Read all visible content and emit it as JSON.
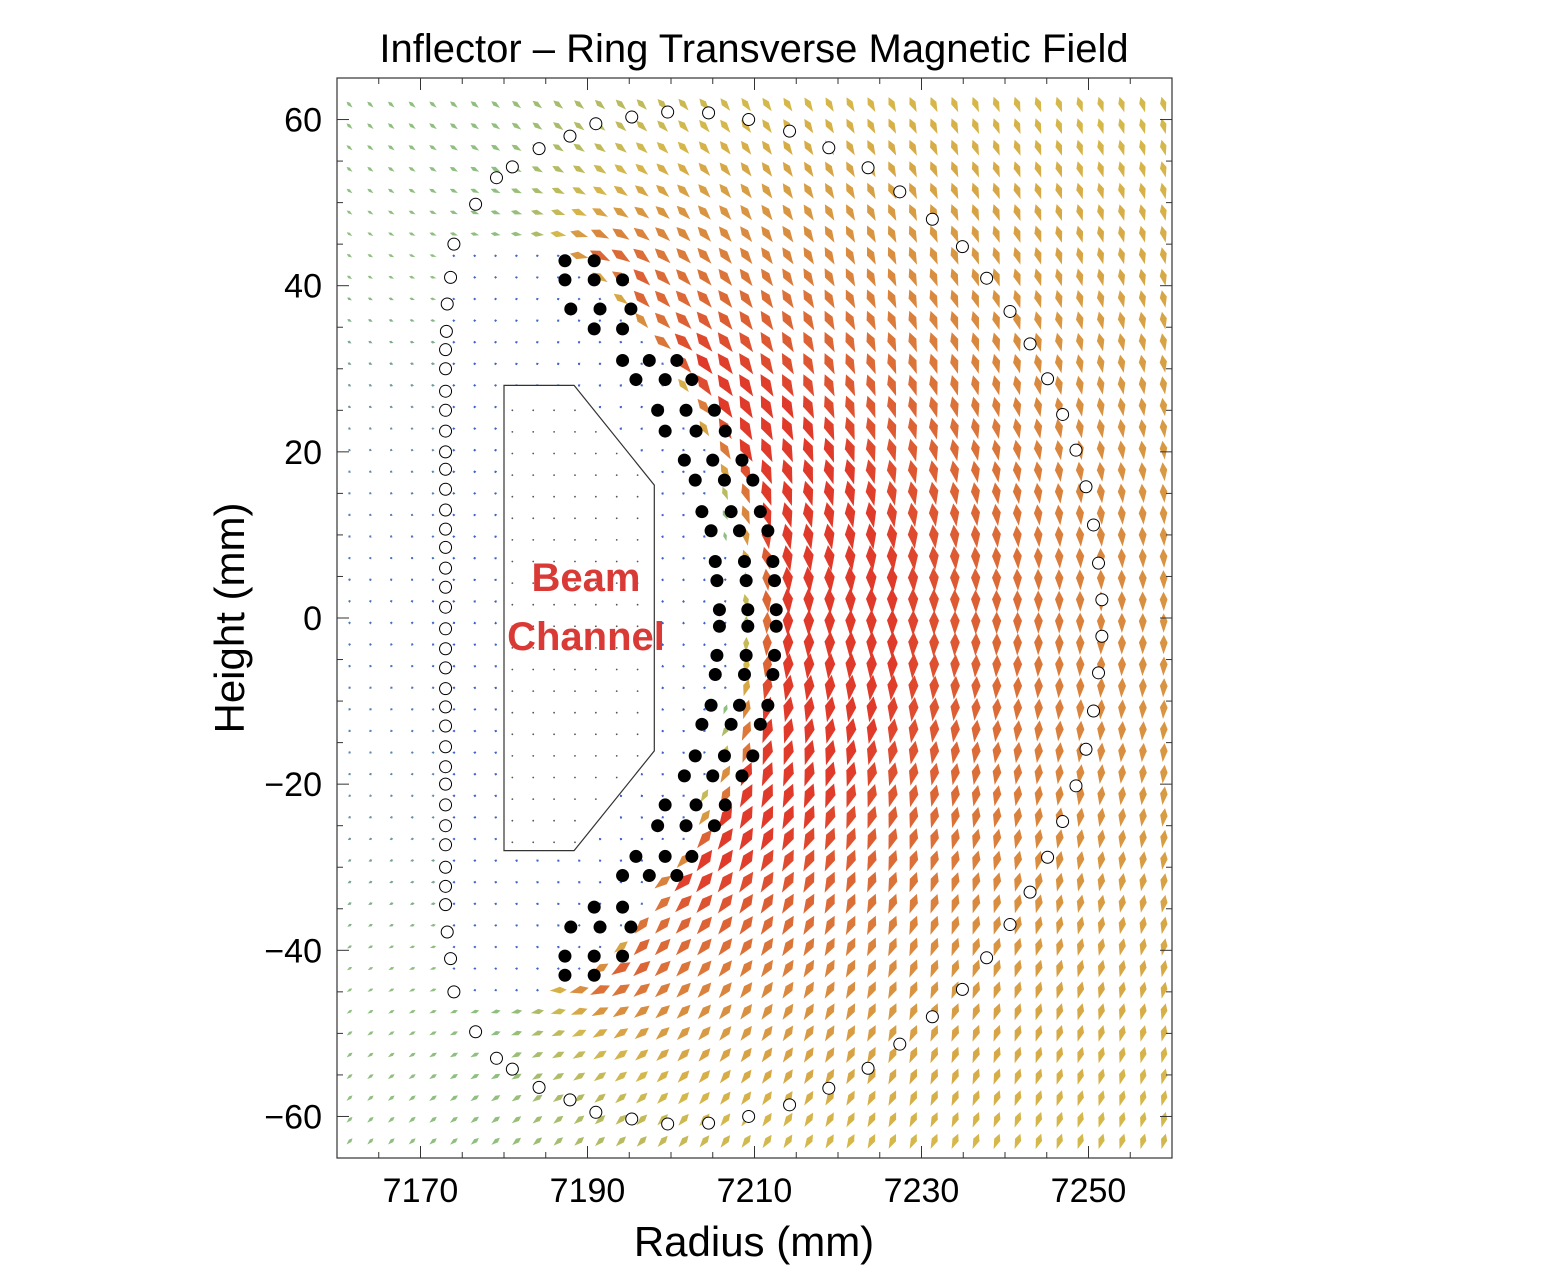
{
  "chart_data": {
    "type": "vector_field",
    "title": "Inflector – Ring Transverse Magnetic Field",
    "xlabel": "Radius (mm)",
    "ylabel": "Height (mm)",
    "xlim": [
      7160,
      7260
    ],
    "ylim": [
      -65,
      65
    ],
    "xticks": [
      "7170",
      "7190",
      "7210",
      "7230",
      "7250"
    ],
    "xtick_values": [
      7170,
      7190,
      7210,
      7230,
      7250
    ],
    "yticks": [
      "60",
      "40",
      "20",
      "0",
      "−20",
      "−40",
      "−60"
    ],
    "ytick_values": [
      60,
      40,
      20,
      0,
      -20,
      -40,
      -60
    ],
    "grid": false,
    "annotation": {
      "lines": [
        "Beam",
        "Channel"
      ],
      "color": "#d93a36"
    },
    "colors": {
      "weak_field": "#3a5fcd",
      "mid_field": "#8fbf7f",
      "strong_mid": "#d6b84a",
      "strong_field": "#e03a2a",
      "coil_filled": "#000000",
      "coil_open": "#000000"
    },
    "beam_channel_outline_mm": [
      [
        7180,
        28
      ],
      [
        7188.4,
        28
      ],
      [
        7198,
        16
      ],
      [
        7198,
        -16
      ],
      [
        7188.4,
        -28
      ],
      [
        7180,
        -28
      ]
    ],
    "inner_coil_conductors_mm": [
      [
        7187.3,
        43
      ],
      [
        7190.8,
        43
      ],
      [
        7187.3,
        40.7
      ],
      [
        7190.8,
        40.7
      ],
      [
        7194.2,
        40.7
      ],
      [
        7188,
        37.2
      ],
      [
        7191.5,
        37.2
      ],
      [
        7195.2,
        37.2
      ],
      [
        7190.8,
        34.8
      ],
      [
        7194.2,
        34.8
      ],
      [
        7194.2,
        31
      ],
      [
        7197.4,
        31
      ],
      [
        7200.7,
        31
      ],
      [
        7195.8,
        28.7
      ],
      [
        7199.3,
        28.7
      ],
      [
        7202.5,
        28.7
      ],
      [
        7198.4,
        25
      ],
      [
        7201.8,
        25
      ],
      [
        7205.2,
        25
      ],
      [
        7199.3,
        22.5
      ],
      [
        7203,
        22.5
      ],
      [
        7206.5,
        22.5
      ],
      [
        7201.6,
        19
      ],
      [
        7205,
        19
      ],
      [
        7208.5,
        19
      ],
      [
        7202.9,
        16.6
      ],
      [
        7206.4,
        16.6
      ],
      [
        7209.8,
        16.6
      ],
      [
        7203.7,
        12.8
      ],
      [
        7207.2,
        12.8
      ],
      [
        7210.7,
        12.8
      ],
      [
        7204.8,
        10.5
      ],
      [
        7208.2,
        10.5
      ],
      [
        7211.6,
        10.5
      ],
      [
        7205.3,
        6.8
      ],
      [
        7208.8,
        6.8
      ],
      [
        7212.2,
        6.8
      ],
      [
        7205.5,
        4.5
      ],
      [
        7209,
        4.5
      ],
      [
        7212.4,
        4.5
      ],
      [
        7205.8,
        1
      ],
      [
        7209.2,
        1
      ],
      [
        7212.6,
        1
      ],
      [
        7205.8,
        -1
      ],
      [
        7209.2,
        -1
      ],
      [
        7212.6,
        -1
      ],
      [
        7205.5,
        -4.5
      ],
      [
        7209,
        -4.5
      ],
      [
        7212.4,
        -4.5
      ],
      [
        7205.3,
        -6.8
      ],
      [
        7208.8,
        -6.8
      ],
      [
        7212.2,
        -6.8
      ],
      [
        7204.8,
        -10.5
      ],
      [
        7208.2,
        -10.5
      ],
      [
        7211.6,
        -10.5
      ],
      [
        7203.7,
        -12.8
      ],
      [
        7207.2,
        -12.8
      ],
      [
        7210.7,
        -12.8
      ],
      [
        7202.9,
        -16.6
      ],
      [
        7206.4,
        -16.6
      ],
      [
        7209.8,
        -16.6
      ],
      [
        7201.6,
        -19
      ],
      [
        7205,
        -19
      ],
      [
        7208.5,
        -19
      ],
      [
        7199.3,
        -22.5
      ],
      [
        7203,
        -22.5
      ],
      [
        7206.5,
        -22.5
      ],
      [
        7198.4,
        -25
      ],
      [
        7201.8,
        -25
      ],
      [
        7205.2,
        -25
      ],
      [
        7195.8,
        -28.7
      ],
      [
        7199.3,
        -28.7
      ],
      [
        7202.5,
        -28.7
      ],
      [
        7194.2,
        -31
      ],
      [
        7197.4,
        -31
      ],
      [
        7200.7,
        -31
      ],
      [
        7190.8,
        -34.8
      ],
      [
        7194.2,
        -34.8
      ],
      [
        7188,
        -37.2
      ],
      [
        7191.5,
        -37.2
      ],
      [
        7195.2,
        -37.2
      ],
      [
        7187.3,
        -40.7
      ],
      [
        7190.8,
        -40.7
      ],
      [
        7194.2,
        -40.7
      ],
      [
        7187.3,
        -43
      ],
      [
        7190.8,
        -43
      ]
    ],
    "outer_coil_conductors_mm": [
      [
        7174,
        45
      ],
      [
        7173.6,
        41
      ],
      [
        7173.2,
        37.8
      ],
      [
        7173.1,
        34.5
      ],
      [
        7173,
        32.3
      ],
      [
        7173,
        30
      ],
      [
        7173,
        27.3
      ],
      [
        7173,
        25
      ],
      [
        7173,
        22.5
      ],
      [
        7173,
        20
      ],
      [
        7173,
        17.9
      ],
      [
        7173,
        15.5
      ],
      [
        7173,
        13
      ],
      [
        7173,
        10.7
      ],
      [
        7173,
        8.5
      ],
      [
        7173,
        6
      ],
      [
        7173,
        3.7
      ],
      [
        7173,
        1.3
      ],
      [
        7173,
        -1.3
      ],
      [
        7173,
        -3.7
      ],
      [
        7173,
        -6
      ],
      [
        7173,
        -8.5
      ],
      [
        7173,
        -10.7
      ],
      [
        7173,
        -13
      ],
      [
        7173,
        -15.5
      ],
      [
        7173,
        -17.9
      ],
      [
        7173,
        -20
      ],
      [
        7173,
        -22.5
      ],
      [
        7173,
        -25
      ],
      [
        7173,
        -27.3
      ],
      [
        7173,
        -30
      ],
      [
        7173,
        -32.3
      ],
      [
        7173,
        -34.5
      ],
      [
        7173.2,
        -37.8
      ],
      [
        7173.6,
        -41
      ],
      [
        7174,
        -45
      ],
      [
        7176.6,
        49.8
      ],
      [
        7179.1,
        53
      ],
      [
        7181,
        54.3
      ],
      [
        7184.2,
        56.5
      ],
      [
        7187.9,
        58
      ],
      [
        7191,
        59.5
      ],
      [
        7195.3,
        60.3
      ],
      [
        7199.6,
        60.9
      ],
      [
        7204.5,
        60.8
      ],
      [
        7209.3,
        60
      ],
      [
        7214.2,
        58.6
      ],
      [
        7218.9,
        56.6
      ],
      [
        7223.6,
        54.2
      ],
      [
        7227.4,
        51.3
      ],
      [
        7231.3,
        48
      ],
      [
        7234.9,
        44.7
      ],
      [
        7237.8,
        40.9
      ],
      [
        7240.6,
        36.9
      ],
      [
        7243,
        33
      ],
      [
        7245.1,
        28.8
      ],
      [
        7246.9,
        24.5
      ],
      [
        7248.5,
        20.2
      ],
      [
        7249.7,
        15.8
      ],
      [
        7250.6,
        11.2
      ],
      [
        7251.2,
        6.6
      ],
      [
        7251.6,
        2.2
      ],
      [
        7251.6,
        -2.2
      ],
      [
        7251.2,
        -6.6
      ],
      [
        7250.6,
        -11.2
      ],
      [
        7249.7,
        -15.8
      ],
      [
        7248.5,
        -20.2
      ],
      [
        7246.9,
        -24.5
      ],
      [
        7245.1,
        -28.8
      ],
      [
        7243,
        -33
      ],
      [
        7240.6,
        -36.9
      ],
      [
        7237.8,
        -40.9
      ],
      [
        7234.9,
        -44.7
      ],
      [
        7231.3,
        -48
      ],
      [
        7227.4,
        -51.3
      ],
      [
        7223.6,
        -54.2
      ],
      [
        7218.9,
        -56.6
      ],
      [
        7214.2,
        -58.6
      ],
      [
        7209.3,
        -60
      ],
      [
        7204.5,
        -60.8
      ],
      [
        7199.6,
        -60.9
      ],
      [
        7195.3,
        -60.3
      ],
      [
        7191,
        -59.5
      ],
      [
        7187.9,
        -58
      ],
      [
        7184.2,
        -56.5
      ],
      [
        7181,
        -54.3
      ],
      [
        7179.1,
        -53
      ],
      [
        7176.6,
        -49.8
      ]
    ]
  }
}
